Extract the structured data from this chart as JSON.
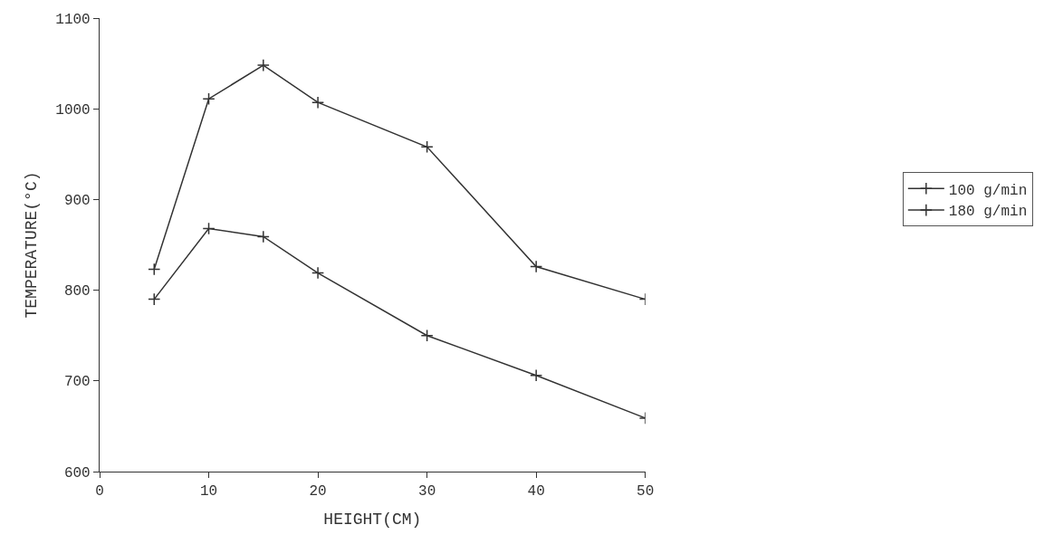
{
  "chart_data": {
    "type": "line",
    "xlabel": "HEIGHT(CM)",
    "ylabel": "TEMPERATURE(°C)",
    "x": [
      5,
      10,
      15,
      20,
      30,
      40,
      50
    ],
    "series": [
      {
        "name": "100 g/min",
        "color": "#333333",
        "values": [
          823,
          1011,
          1048,
          1007,
          958,
          826,
          790
        ]
      },
      {
        "name": "180 g/min",
        "color": "#333333",
        "values": [
          790,
          868,
          859,
          819,
          750,
          706,
          659
        ]
      }
    ],
    "xlim": [
      0,
      50
    ],
    "xticks": [
      0,
      10,
      20,
      30,
      40,
      50
    ],
    "ylim": [
      600,
      1100
    ],
    "yticks": [
      600,
      700,
      800,
      900,
      1000,
      1100
    ],
    "legend": "right",
    "marker": "cross",
    "line_style": "solid"
  }
}
